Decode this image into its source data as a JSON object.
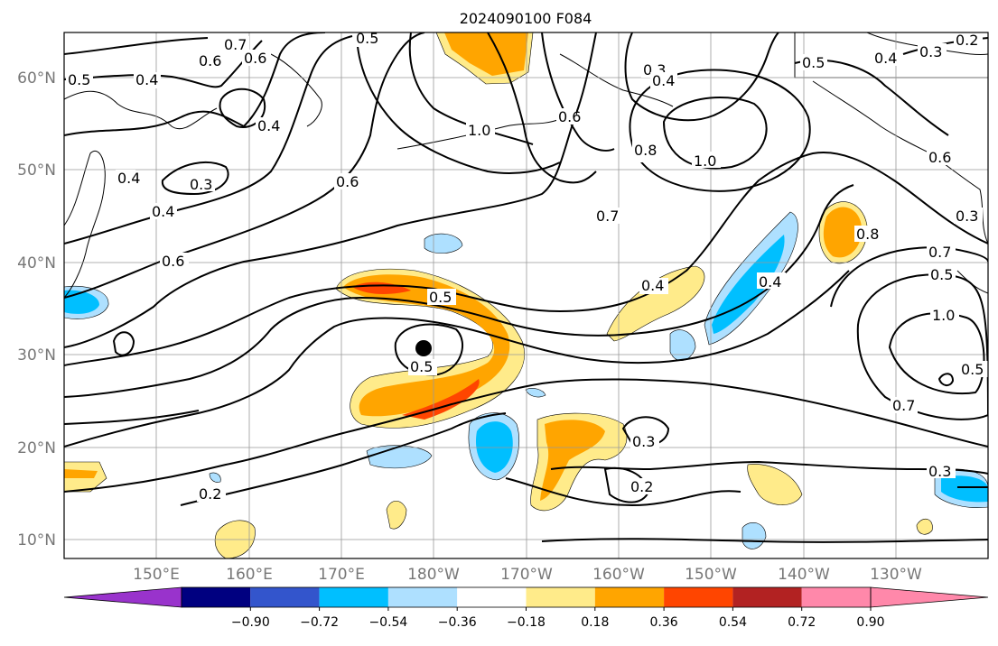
{
  "title": "2024090100 F084",
  "map": {
    "lat_labels": [
      "10°N",
      "20°N",
      "30°N",
      "40°N",
      "50°N",
      "60°N"
    ],
    "lon_labels": [
      "150°E",
      "160°E",
      "170°E",
      "180°W",
      "170°W",
      "160°W",
      "150°W",
      "140°W",
      "130°W"
    ],
    "storm_marker": "storm-center-dot"
  },
  "contour_labels": [
    "0.7",
    "0.6",
    "0.5",
    "0.5",
    "0.4",
    "0.3",
    "0.4",
    "0.4",
    "0.3",
    "0.4",
    "0.6",
    "0.6",
    "1.0",
    "0.3",
    "0.4",
    "0.6",
    "0.8",
    "1.0",
    "0.7",
    "0.5",
    "0.4",
    "0.3",
    "0.2",
    "0.5",
    "0.4",
    "0.4",
    "0.5",
    "0.6",
    "0.6",
    "0.7",
    "0.8",
    "1.0",
    "0.5",
    "0.2",
    "0.3",
    "0.2",
    "0.7",
    "0.3",
    "0.5"
  ],
  "colorbar": {
    "tick_labels": [
      "−0.90",
      "−0.72",
      "−0.54",
      "−0.36",
      "−0.18",
      "0.18",
      "0.36",
      "0.54",
      "0.72",
      "0.90"
    ],
    "colors": [
      "#9933cc",
      "#000080",
      "#3355cc",
      "#00bfff",
      "#aee0ff",
      "#ffffff",
      "#ffeb8a",
      "#ffa500",
      "#ff4500",
      "#b22222",
      "#ff88aa",
      "#ff88aa"
    ]
  }
}
